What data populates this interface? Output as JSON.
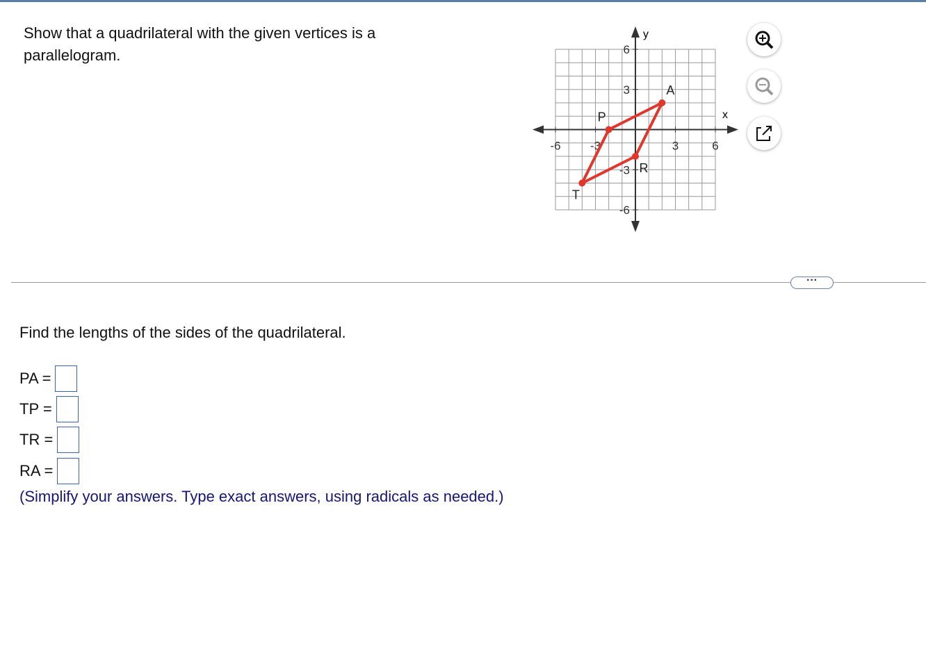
{
  "question": {
    "text": "Show that a quadrilateral with the given vertices is a parallelogram."
  },
  "graph": {
    "x_label": "x",
    "y_label": "y",
    "xlim": [
      -6,
      6
    ],
    "ylim": [
      -6,
      6
    ],
    "xticks": [
      -6,
      -3,
      3,
      6
    ],
    "yticks": [
      -6,
      -3,
      3,
      6
    ],
    "color": "#e0362c",
    "points": [
      {
        "label": "A",
        "x": 2,
        "y": 2
      },
      {
        "label": "P",
        "x": -2,
        "y": 0
      },
      {
        "label": "T",
        "x": -4,
        "y": -4
      },
      {
        "label": "R",
        "x": 0,
        "y": -2
      }
    ]
  },
  "prompt": "Find the lengths of the sides of the quadrilateral.",
  "answers": [
    {
      "label": "PA ="
    },
    {
      "label": "TP ="
    },
    {
      "label": "TR ="
    },
    {
      "label": "RA ="
    }
  ],
  "hint": "(Simplify your answers. Type exact answers, using radicals as needed.)"
}
